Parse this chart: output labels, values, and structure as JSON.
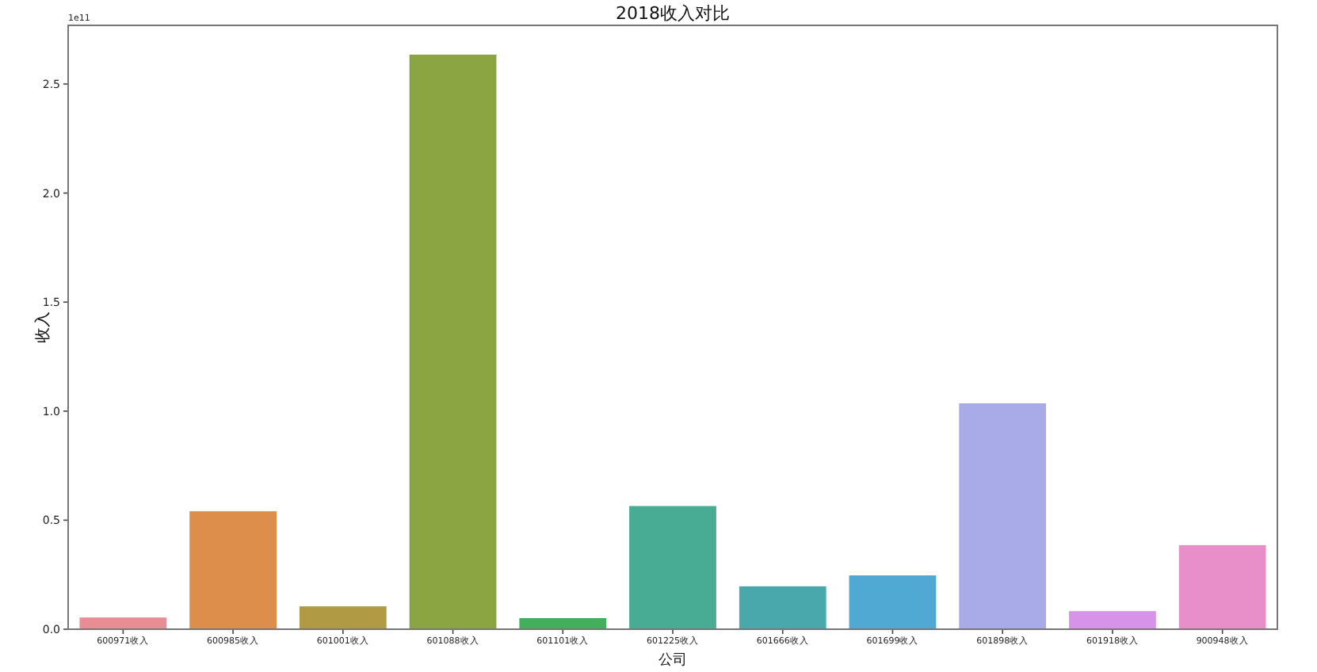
{
  "chart_data": {
    "type": "bar",
    "title": "2018收入对比",
    "xlabel": "公司",
    "ylabel": "收入",
    "annotations": [
      "1e11"
    ],
    "categories": [
      "600971收入",
      "600985收入",
      "601001收入",
      "601088收入",
      "601101收入",
      "601225收入",
      "601666收入",
      "601699收入",
      "601898收入",
      "601918收入",
      "900948收入"
    ],
    "values": [
      0.056,
      0.543,
      0.107,
      2.637,
      0.053,
      0.567,
      0.199,
      0.249,
      1.038,
      0.085,
      0.388
    ],
    "colors": [
      "#e98d95",
      "#dc8e4a",
      "#b09a43",
      "#8ba543",
      "#43ae5b",
      "#48ac94",
      "#49a8ac",
      "#4fa9d2",
      "#a8abe8",
      "#d693e8",
      "#e88ec8"
    ],
    "ylim": [
      0,
      2.769
    ],
    "yticks": [
      {
        "value": 0,
        "label": "0.0"
      },
      0.5,
      {
        "value": 1,
        "label": "1.0"
      },
      1.5,
      {
        "value": 2,
        "label": "2.0"
      },
      2.5
    ],
    "grid": false
  }
}
